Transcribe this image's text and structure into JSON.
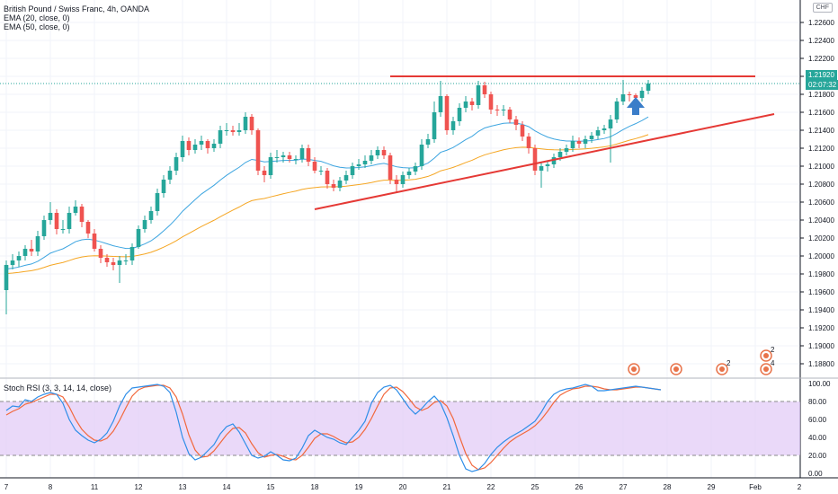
{
  "header": {
    "title": "British Pound / Swiss Franc, 4h, OANDA",
    "ema20": "EMA (20, close, 0)",
    "ema50": "EMA (50, close, 0)",
    "currency": "CHF"
  },
  "price_tag": {
    "price": "1.21920",
    "countdown": "02:07:32"
  },
  "rsi": {
    "title": "Stoch RSI (3, 3, 14, 14, close)"
  },
  "colors": {
    "up": "#26a69a",
    "down": "#ef5350",
    "ema20": "#3da5e0",
    "ema50": "#f5a623",
    "trendline": "#e53935",
    "stoch_k": "#2f8ee8",
    "stoch_d": "#f2683c",
    "band": "#e1c9f7",
    "arrow": "#3a7dc9"
  },
  "icons": [
    "flag-icon",
    "flag-icon",
    "flag-icon",
    "flag-icon",
    "flag-icon"
  ],
  "event_counts": [
    "2",
    "2",
    "4"
  ],
  "chart_data": [
    {
      "type": "candlestick",
      "ylim": [
        1.1865,
        1.2285
      ],
      "y_ticks": [
        "1.22600",
        "1.22400",
        "1.22200",
        "1.22000",
        "1.21800",
        "1.21600",
        "1.21400",
        "1.21200",
        "1.21000",
        "1.20800",
        "1.20600",
        "1.20400",
        "1.20200",
        "1.20000",
        "1.19800",
        "1.19600",
        "1.19400",
        "1.19200",
        "1.19000",
        "1.18800"
      ],
      "x_ticks": [
        "7",
        "8",
        "11",
        "12",
        "13",
        "14",
        "15",
        "18",
        "19",
        "20",
        "21",
        "22",
        "25",
        "26",
        "27",
        "28",
        "29",
        "Feb",
        "2"
      ],
      "open": [
        1.1962,
        1.199,
        1.1995,
        1.2,
        1.2008,
        1.2005,
        1.2022,
        1.204,
        1.2048,
        1.203,
        1.203,
        1.2048,
        1.2055,
        1.2038,
        1.2025,
        1.2008,
        1.1998,
        1.1993,
        1.199,
        1.1995,
        1.1995,
        1.201,
        1.203,
        1.204,
        1.205,
        1.207,
        1.2085,
        1.2095,
        1.211,
        1.2128,
        1.2118,
        1.2124,
        1.2128,
        1.212,
        1.2125,
        1.214,
        1.214,
        1.2138,
        1.214,
        1.2155,
        1.214,
        1.2095,
        1.209,
        1.211,
        1.211,
        1.2112,
        1.2108,
        1.2108,
        1.212,
        1.2105,
        1.2095,
        1.2095,
        1.208,
        1.2076,
        1.2084,
        1.209,
        1.21,
        1.2102,
        1.2106,
        1.2112,
        1.2118,
        1.2112,
        1.2085,
        1.208,
        1.209,
        1.2094,
        1.21,
        1.2124,
        1.213,
        1.216,
        1.2178,
        1.214,
        1.215,
        1.2165,
        1.2172,
        1.2168,
        1.219,
        1.218,
        1.2163,
        1.2162,
        1.2163,
        1.2152,
        1.2146,
        1.2133,
        1.212,
        1.2095,
        1.21,
        1.2102,
        1.211,
        1.2116,
        1.212,
        1.2128,
        1.2125,
        1.213,
        1.2134,
        1.214,
        1.2142,
        1.2152,
        1.2172,
        1.218,
        1.2179,
        1.2176,
        1.2184
      ],
      "close": [
        1.199,
        1.1995,
        1.2,
        1.2008,
        1.2005,
        1.2022,
        1.204,
        1.2048,
        1.203,
        1.203,
        1.2048,
        1.2055,
        1.2038,
        1.2025,
        1.2008,
        1.1998,
        1.1993,
        1.199,
        1.1995,
        1.1995,
        1.201,
        1.203,
        1.204,
        1.205,
        1.207,
        1.2085,
        1.2095,
        1.211,
        1.2128,
        1.2118,
        1.2124,
        1.2128,
        1.212,
        1.2125,
        1.214,
        1.214,
        1.2138,
        1.214,
        1.2155,
        1.214,
        1.2095,
        1.209,
        1.211,
        1.211,
        1.2112,
        1.2108,
        1.2108,
        1.212,
        1.2105,
        1.2095,
        1.2095,
        1.208,
        1.2076,
        1.2084,
        1.209,
        1.21,
        1.2102,
        1.2106,
        1.2112,
        1.2118,
        1.2112,
        1.2085,
        1.208,
        1.209,
        1.2094,
        1.21,
        1.2124,
        1.213,
        1.216,
        1.2178,
        1.214,
        1.215,
        1.2165,
        1.2172,
        1.2168,
        1.219,
        1.218,
        1.2163,
        1.2162,
        1.2163,
        1.2152,
        1.2146,
        1.2133,
        1.212,
        1.2095,
        1.21,
        1.2102,
        1.211,
        1.2116,
        1.212,
        1.2128,
        1.2125,
        1.213,
        1.2134,
        1.214,
        1.2142,
        1.2152,
        1.2172,
        1.218,
        1.2179,
        1.2176,
        1.2184,
        1.2192
      ],
      "high": [
        1.1995,
        1.2002,
        1.2005,
        1.2012,
        1.2018,
        1.2028,
        1.2045,
        1.206,
        1.2052,
        1.204,
        1.2055,
        1.2062,
        1.2058,
        1.204,
        1.203,
        1.2012,
        1.2002,
        1.1998,
        1.2,
        1.2002,
        1.2014,
        1.2034,
        1.2045,
        1.2055,
        1.2075,
        1.209,
        1.21,
        1.2115,
        1.2134,
        1.2132,
        1.213,
        1.2134,
        1.213,
        1.213,
        1.2145,
        1.2148,
        1.2145,
        1.2148,
        1.216,
        1.2158,
        1.2142,
        1.21,
        1.2115,
        1.2118,
        1.2116,
        1.2116,
        1.2112,
        1.2124,
        1.2124,
        1.211,
        1.21,
        1.2098,
        1.2085,
        1.2088,
        1.2095,
        1.2104,
        1.2108,
        1.2112,
        1.2118,
        1.2122,
        1.2122,
        1.2115,
        1.209,
        1.2094,
        1.2098,
        1.2104,
        1.213,
        1.2136,
        1.2172,
        1.2195,
        1.218,
        1.2155,
        1.217,
        1.2178,
        1.2176,
        1.2195,
        1.2194,
        1.2183,
        1.2168,
        1.2168,
        1.2166,
        1.2156,
        1.215,
        1.2137,
        1.2124,
        1.2104,
        1.2106,
        1.2114,
        1.212,
        1.2124,
        1.2134,
        1.2132,
        1.2134,
        1.2138,
        1.2144,
        1.2146,
        1.2157,
        1.2176,
        1.2196,
        1.2183,
        1.2181,
        1.2188,
        1.2196
      ],
      "low": [
        1.1935,
        1.1985,
        1.1988,
        1.1995,
        1.2,
        1.2,
        1.2018,
        1.2035,
        1.2024,
        1.2025,
        1.2025,
        1.2045,
        1.2032,
        1.202,
        1.2005,
        1.1992,
        1.1988,
        1.1984,
        1.197,
        1.199,
        1.199,
        1.2008,
        1.2026,
        1.2036,
        1.2045,
        1.2065,
        1.208,
        1.209,
        1.2105,
        1.2112,
        1.2114,
        1.2118,
        1.2114,
        1.2116,
        1.212,
        1.2134,
        1.2134,
        1.2134,
        1.2136,
        1.2135,
        1.209,
        1.2082,
        1.2086,
        1.2104,
        1.2104,
        1.2104,
        1.2102,
        1.2104,
        1.21,
        1.2092,
        1.209,
        1.2075,
        1.2072,
        1.2072,
        1.208,
        1.2086,
        1.2096,
        1.2098,
        1.2102,
        1.2108,
        1.2108,
        1.208,
        1.207,
        1.2076,
        1.2086,
        1.209,
        1.2096,
        1.212,
        1.2126,
        1.2155,
        1.2135,
        1.2135,
        1.2145,
        1.216,
        1.2162,
        1.2164,
        1.2176,
        1.2158,
        1.2156,
        1.2156,
        1.2148,
        1.214,
        1.2128,
        1.2114,
        1.209,
        1.2076,
        1.2094,
        1.2098,
        1.2106,
        1.2112,
        1.2116,
        1.212,
        1.212,
        1.2126,
        1.213,
        1.2136,
        1.2104,
        1.2148,
        1.2168,
        1.2172,
        1.2172,
        1.2172,
        1.218
      ],
      "ema20_first": 1.1985,
      "ema50_first": 1.198,
      "resistance_level": 1.22,
      "support_line": {
        "from": [
          "18",
          1.2052
        ],
        "to": [
          "2",
          1.2158
        ]
      }
    },
    {
      "type": "line",
      "title": "Stoch RSI (3, 3, 14, 14, close)",
      "ylim": [
        -5,
        105
      ],
      "y_ticks": [
        "100.00",
        "80.00",
        "60.00",
        "40.00",
        "20.00",
        "0.00"
      ],
      "bands": [
        20,
        80
      ],
      "series": [
        {
          "values": [
            70,
            75,
            74,
            82,
            80,
            85,
            88,
            90,
            88,
            78,
            60,
            48,
            42,
            37,
            34,
            38,
            45,
            58,
            75,
            88,
            95,
            96,
            97,
            98,
            99,
            97,
            90,
            68,
            40,
            22,
            15,
            18,
            25,
            32,
            44,
            52,
            55,
            46,
            33,
            20,
            17,
            19,
            24,
            20,
            15,
            14,
            17,
            28,
            42,
            48,
            44,
            40,
            38,
            34,
            32,
            40,
            48,
            58,
            78,
            90,
            96,
            98,
            93,
            83,
            73,
            66,
            72,
            80,
            86,
            78,
            62,
            42,
            20,
            5,
            2,
            4,
            11,
            21,
            29,
            35,
            40,
            44,
            48,
            53,
            58,
            68,
            80,
            88,
            92,
            94,
            95,
            97,
            99,
            97,
            92,
            92,
            93,
            94,
            95,
            96,
            97,
            96,
            95,
            94,
            93
          ]
        },
        {
          "values": [
            65,
            69,
            72,
            77,
            79,
            82,
            85,
            88,
            88,
            85,
            74,
            60,
            49,
            42,
            37,
            36,
            39,
            47,
            59,
            73,
            86,
            93,
            96,
            97,
            98,
            98,
            95,
            85,
            66,
            43,
            26,
            18,
            19,
            25,
            34,
            43,
            50,
            51,
            45,
            33,
            23,
            18,
            20,
            21,
            19,
            16,
            15,
            20,
            29,
            39,
            44,
            44,
            41,
            37,
            34,
            35,
            40,
            49,
            61,
            75,
            88,
            95,
            96,
            91,
            83,
            74,
            70,
            73,
            79,
            81,
            75,
            61,
            41,
            22,
            9,
            4,
            6,
            12,
            20,
            28,
            35,
            40,
            44,
            48,
            53,
            60,
            69,
            79,
            87,
            91,
            94,
            95,
            97,
            97,
            96,
            94,
            93,
            93,
            94,
            95,
            96,
            96,
            95,
            94,
            93
          ]
        }
      ]
    }
  ]
}
